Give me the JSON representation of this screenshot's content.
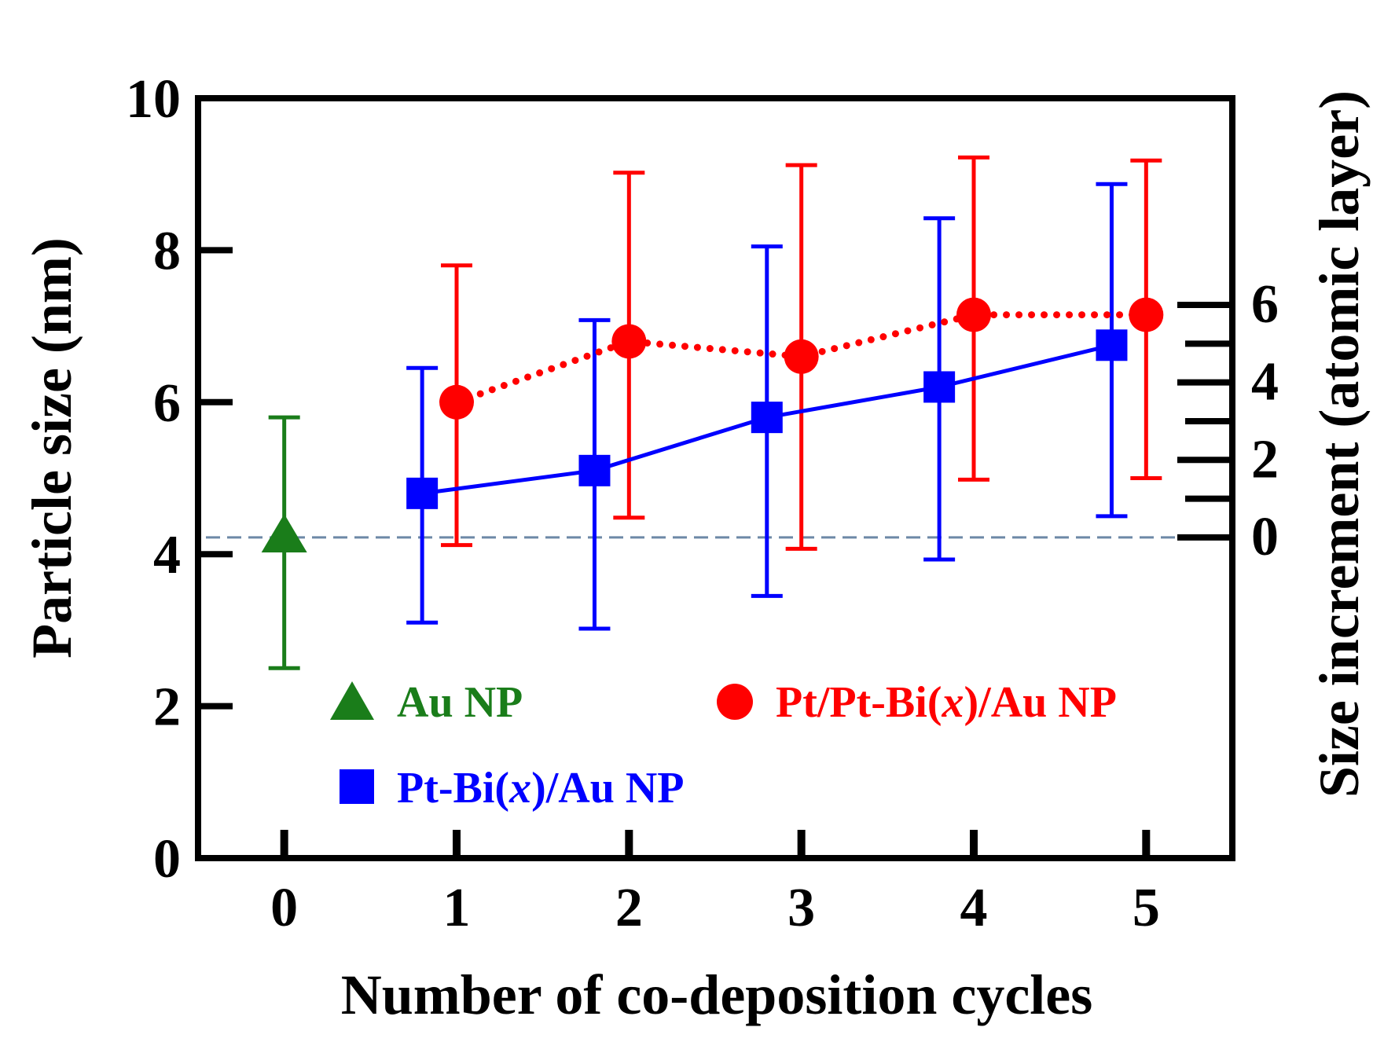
{
  "chart_data": {
    "type": "scatter",
    "x": [
      0,
      1,
      2,
      3,
      4,
      5
    ],
    "xlabel": "Number of co-deposition cycles",
    "ylabel": "Particle size (nm)",
    "y2label": "Size increment (atomic layer)",
    "xlim": [
      -0.5,
      5.5
    ],
    "ylim": [
      0,
      10
    ],
    "xticks": [
      "0",
      "1",
      "2",
      "3",
      "4",
      "5"
    ],
    "yticks": [
      "0",
      "2",
      "4",
      "6",
      "8",
      "10"
    ],
    "y2ticks": [
      "0",
      "2",
      "4",
      "6"
    ],
    "y2_tick_values": [
      4.22,
      4.73,
      5.24,
      5.75,
      6.26,
      6.77,
      7.28
    ],
    "baseline_y": 4.22,
    "series": [
      {
        "name": "Au NP",
        "color": "#1a7d1a",
        "marker": "triangle",
        "connect": "none",
        "points": [
          {
            "x": 0,
            "y": 4.25,
            "ymin": 2.5,
            "ymax": 5.8
          }
        ]
      },
      {
        "name": "Pt-Bi(x)/Au NP",
        "color": "#0000ff",
        "marker": "square",
        "connect": "solid",
        "points": [
          {
            "x": 0.8,
            "y": 4.8,
            "ymin": 3.1,
            "ymax": 6.45
          },
          {
            "x": 1.8,
            "y": 5.1,
            "ymin": 3.02,
            "ymax": 7.08
          },
          {
            "x": 2.8,
            "y": 5.8,
            "ymin": 3.45,
            "ymax": 8.05
          },
          {
            "x": 3.8,
            "y": 6.2,
            "ymin": 3.93,
            "ymax": 8.42
          },
          {
            "x": 4.8,
            "y": 6.75,
            "ymin": 4.5,
            "ymax": 8.87
          }
        ]
      },
      {
        "name": "Pt/Pt-Bi(x)/Au NP",
        "color": "#ff0000",
        "marker": "circle",
        "connect": "dotted",
        "points": [
          {
            "x": 1,
            "y": 6.0,
            "ymin": 4.12,
            "ymax": 7.8
          },
          {
            "x": 2,
            "y": 6.8,
            "ymin": 4.48,
            "ymax": 9.02
          },
          {
            "x": 3,
            "y": 6.6,
            "ymin": 4.07,
            "ymax": 9.12
          },
          {
            "x": 4,
            "y": 7.15,
            "ymin": 4.98,
            "ymax": 9.22
          },
          {
            "x": 5,
            "y": 7.15,
            "ymin": 5.0,
            "ymax": 9.18
          }
        ]
      }
    ],
    "legend": [
      {
        "label_main": "Au NP",
        "label_parts": [
          "Au NP"
        ],
        "color": "#1a7d1a",
        "marker": "triangle"
      },
      {
        "label_main": "Pt-Bi(x)/Au NP",
        "label_parts": [
          "Pt-Bi(",
          "x",
          ")/Au NP"
        ],
        "color": "#0000ff",
        "marker": "square"
      },
      {
        "label_main": "Pt/Pt-Bi(x)/Au NP",
        "label_parts": [
          "Pt/Pt-Bi(",
          "x",
          ")/Au NP"
        ],
        "color": "#ff0000",
        "marker": "circle"
      }
    ]
  }
}
